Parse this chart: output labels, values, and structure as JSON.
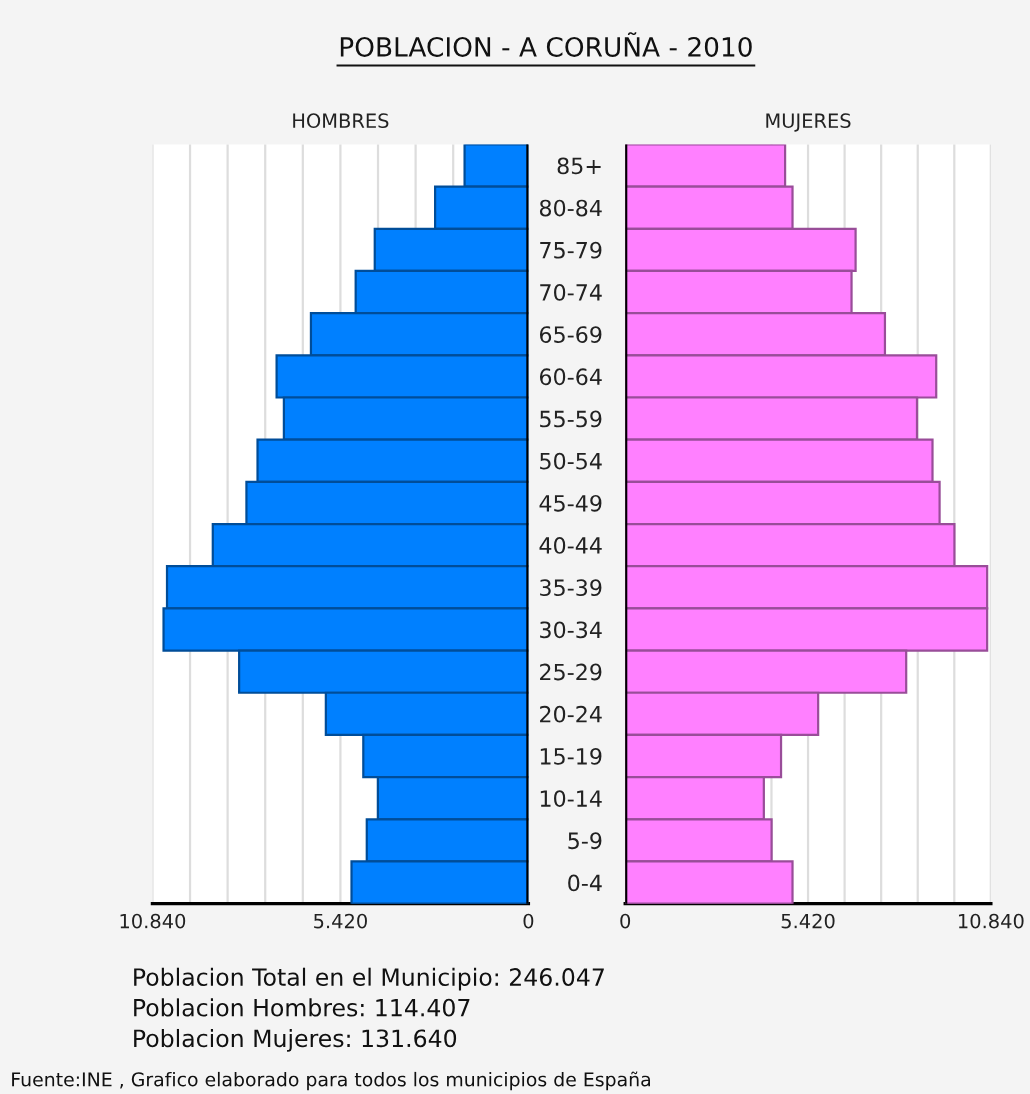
{
  "chart_data": [
    {
      "type": "bar",
      "orientation": "horizontal",
      "title": "HOMBRES",
      "categories": [
        null,
        null,
        null,
        null,
        null,
        null,
        null,
        null,
        null,
        null,
        null,
        null,
        null,
        null,
        null,
        null,
        null,
        null
      ],
      "series": [
        {
          "color": "#0080ff",
          "values": [
            1840,
            2690,
            4430,
            4980,
            6270,
            7260,
            7050,
            7810,
            8130,
            9100,
            10420,
            10520,
            8340,
            5840,
            4760,
            4340,
            4660,
            5100
          ]
        }
      ],
      "xlim": [
        10840,
        0
      ],
      "xticks": [
        {
          "value": 10840,
          "label": "10.840"
        },
        {
          "value": 9756,
          "label": null
        },
        {
          "value": 8672,
          "label": null
        },
        {
          "value": 7588,
          "label": null
        },
        {
          "value": 6504,
          "label": null
        },
        {
          "value": 5420,
          "label": "5.420"
        },
        {
          "value": 4336,
          "label": null
        },
        {
          "value": 3252,
          "label": null
        },
        {
          "value": 2168,
          "label": null
        },
        0
      ],
      "grid": "x",
      "tick_labels": "x",
      "annotations": [
        "POBLACION - A CORUÑA - 2010",
        "Poblacion Total en el Municipio: 246.047",
        "Poblacion Hombres: 114.407",
        "Poblacion Mujeres: 131.640",
        "Fuente:INE , Grafico elaborado para todos los municipios de España"
      ]
    },
    {
      "type": "bar",
      "orientation": "horizontal",
      "title": "MUJERES",
      "categories": [
        "85+",
        "80-84",
        "75-79",
        "70-74",
        "65-69",
        "60-64",
        "55-59",
        "50-54",
        "45-49",
        "40-44",
        "35-39",
        "30-34",
        "25-29",
        "20-24",
        "15-19",
        "10-14",
        "5-9",
        "0-4"
      ],
      "series": [
        {
          "color": "#ff80ff",
          "values": [
            4740,
            4960,
            6830,
            6710,
            7700,
            9220,
            8650,
            9110,
            9320,
            9760,
            10730,
            10730,
            8330,
            5720,
            4620,
            4110,
            4340,
            4960
          ]
        }
      ],
      "xlim": [
        0,
        10840
      ],
      "xticks": [
        0,
        {
          "value": 4336,
          "label": null
        },
        {
          "value": 5420,
          "label": "5.420"
        },
        {
          "value": 6504,
          "label": null
        },
        {
          "value": 7588,
          "label": null
        },
        {
          "value": 8672,
          "label": null
        },
        {
          "value": 9756,
          "label": null
        },
        {
          "value": 10840,
          "label": "10.840"
        }
      ],
      "grid": "x"
    }
  ]
}
